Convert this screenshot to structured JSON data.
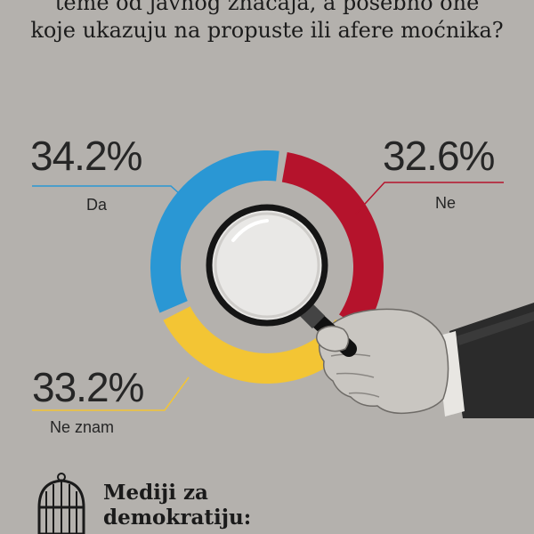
{
  "question": {
    "line1": "teme od javnog značaja, a posebno one",
    "line2": "koje ukazuju na propuste ili afere moćnika?"
  },
  "chart_data": {
    "type": "pie",
    "title": "",
    "slices": [
      {
        "label": "Da",
        "value": 34.2,
        "value_label": "34.2%",
        "color": "#2a97d4"
      },
      {
        "label": "Ne",
        "value": 32.6,
        "value_label": "32.6%",
        "color": "#b5132c"
      },
      {
        "label": "Ne znam",
        "value": 33.2,
        "value_label": "33.2%",
        "color": "#f3c534"
      }
    ],
    "style": "donut with magnifying glass in center"
  },
  "brand": {
    "line1": "Mediji za",
    "line2": "demokratiju:",
    "icon": "birdcage-icon"
  },
  "illustration": "hand-holding-magnifying-glass"
}
